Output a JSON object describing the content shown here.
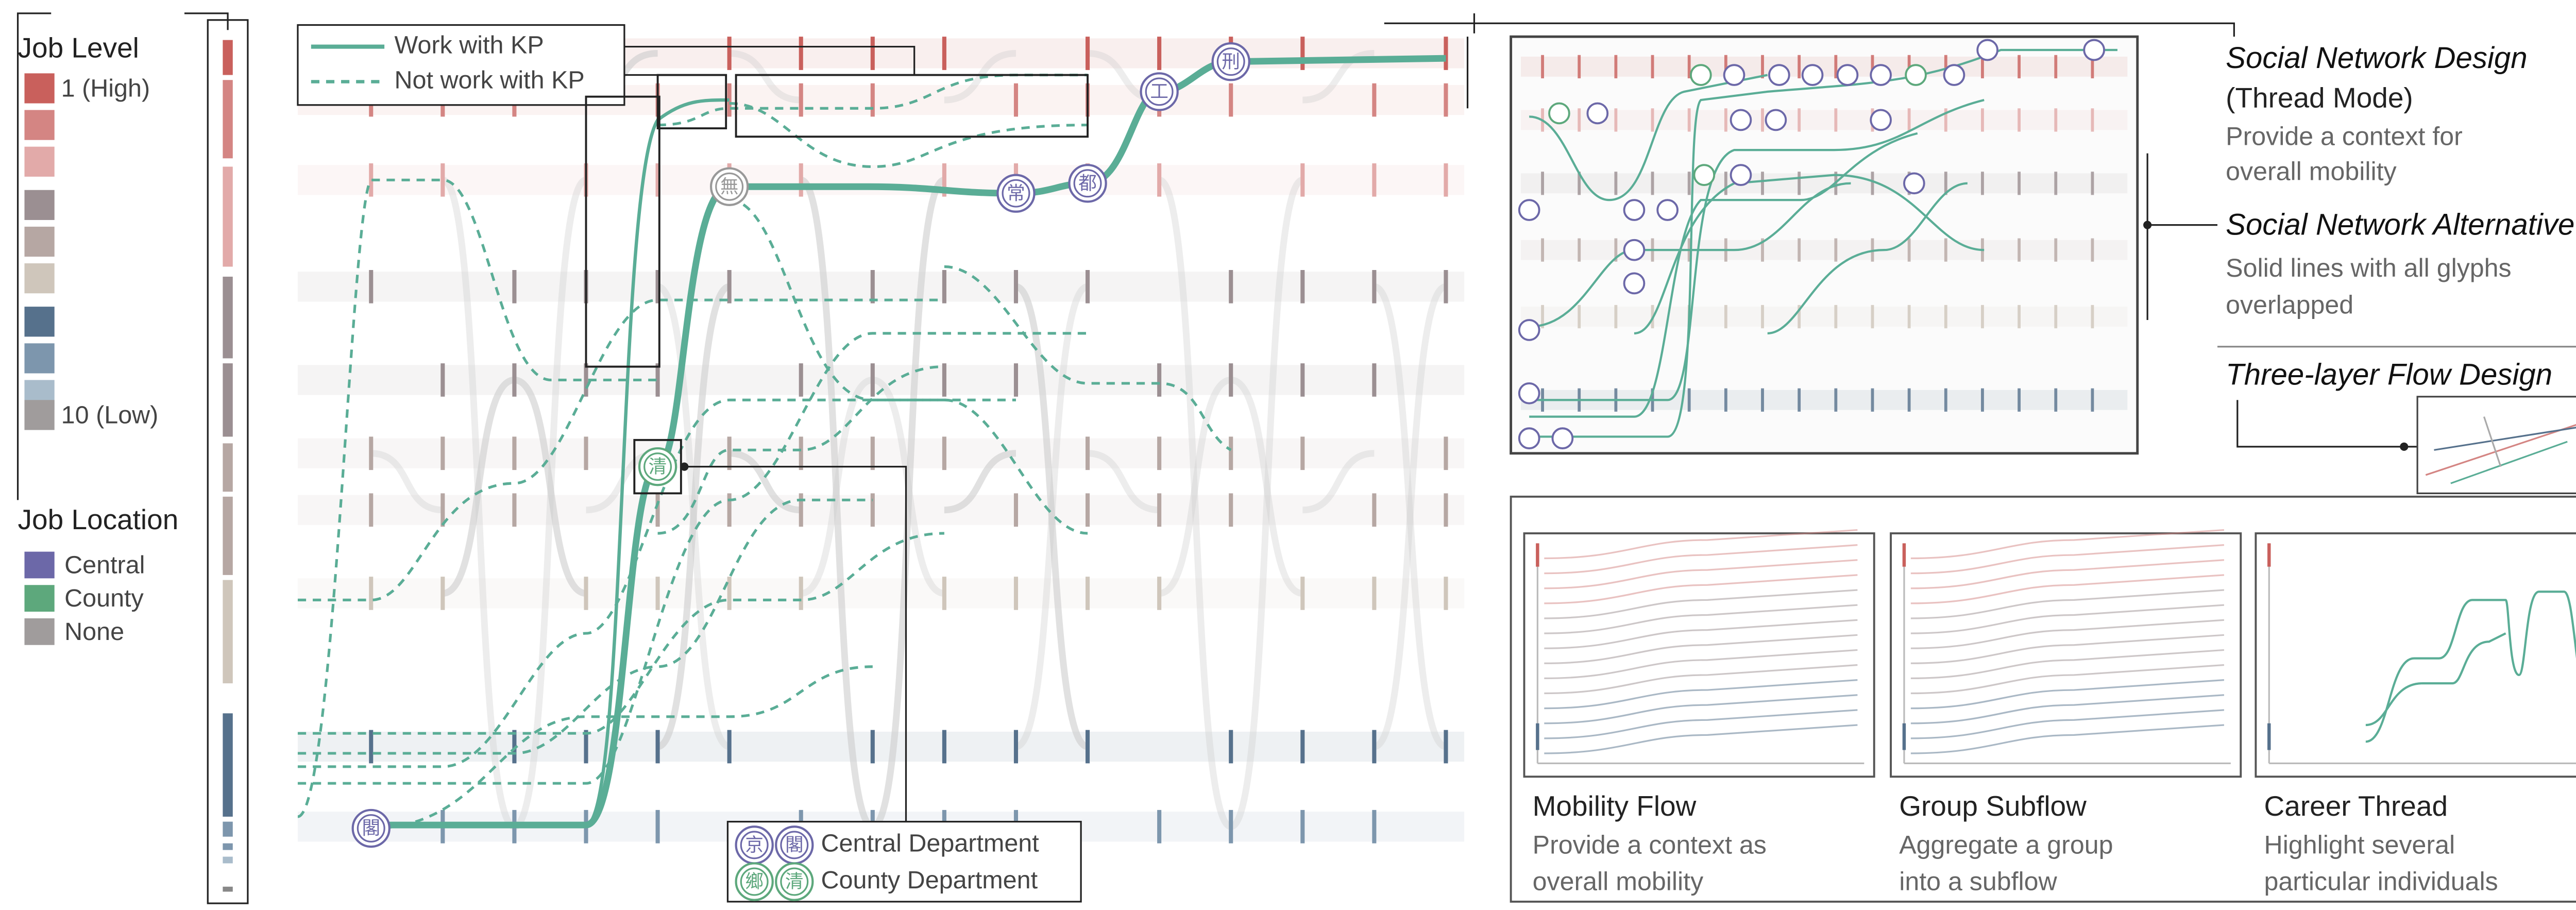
{
  "legend": {
    "job_level": {
      "title": "Job Level",
      "high": "1 (High)",
      "low": "10 (Low)"
    },
    "job_location": {
      "title": "Job Location",
      "items": [
        "Central",
        "County",
        "None"
      ]
    },
    "lines": [
      "Work with KP",
      "Not work with KP"
    ]
  },
  "main": {
    "glyphs": [
      "閣",
      "無",
      "常",
      "都",
      "工",
      "刑",
      "清"
    ],
    "departments": [
      {
        "glyphs": [
          "京",
          "閣"
        ],
        "label": "Central Department"
      },
      {
        "glyphs": [
          "鄉",
          "清"
        ],
        "label": "County Department"
      }
    ]
  },
  "annotations": [
    {
      "title": "Social Network Design",
      "subtitle": "(Thread Mode)",
      "lines": [
        "Provide a context for",
        "overall mobility"
      ]
    },
    {
      "title": "Social Network Alternative",
      "lines": [
        "Solid lines with all glyphs",
        "overlapped"
      ]
    },
    {
      "title": "Three-layer Flow Design"
    }
  ],
  "panels": [
    {
      "title": "Mobility Flow",
      "lines": [
        "Provide a context as",
        "overall mobility"
      ]
    },
    {
      "title": "Group Subflow",
      "lines": [
        "Aggregate a group",
        "into a subflow"
      ]
    },
    {
      "title": "Career Thread",
      "lines": [
        "Highlight several",
        "particular individuals"
      ]
    }
  ]
}
